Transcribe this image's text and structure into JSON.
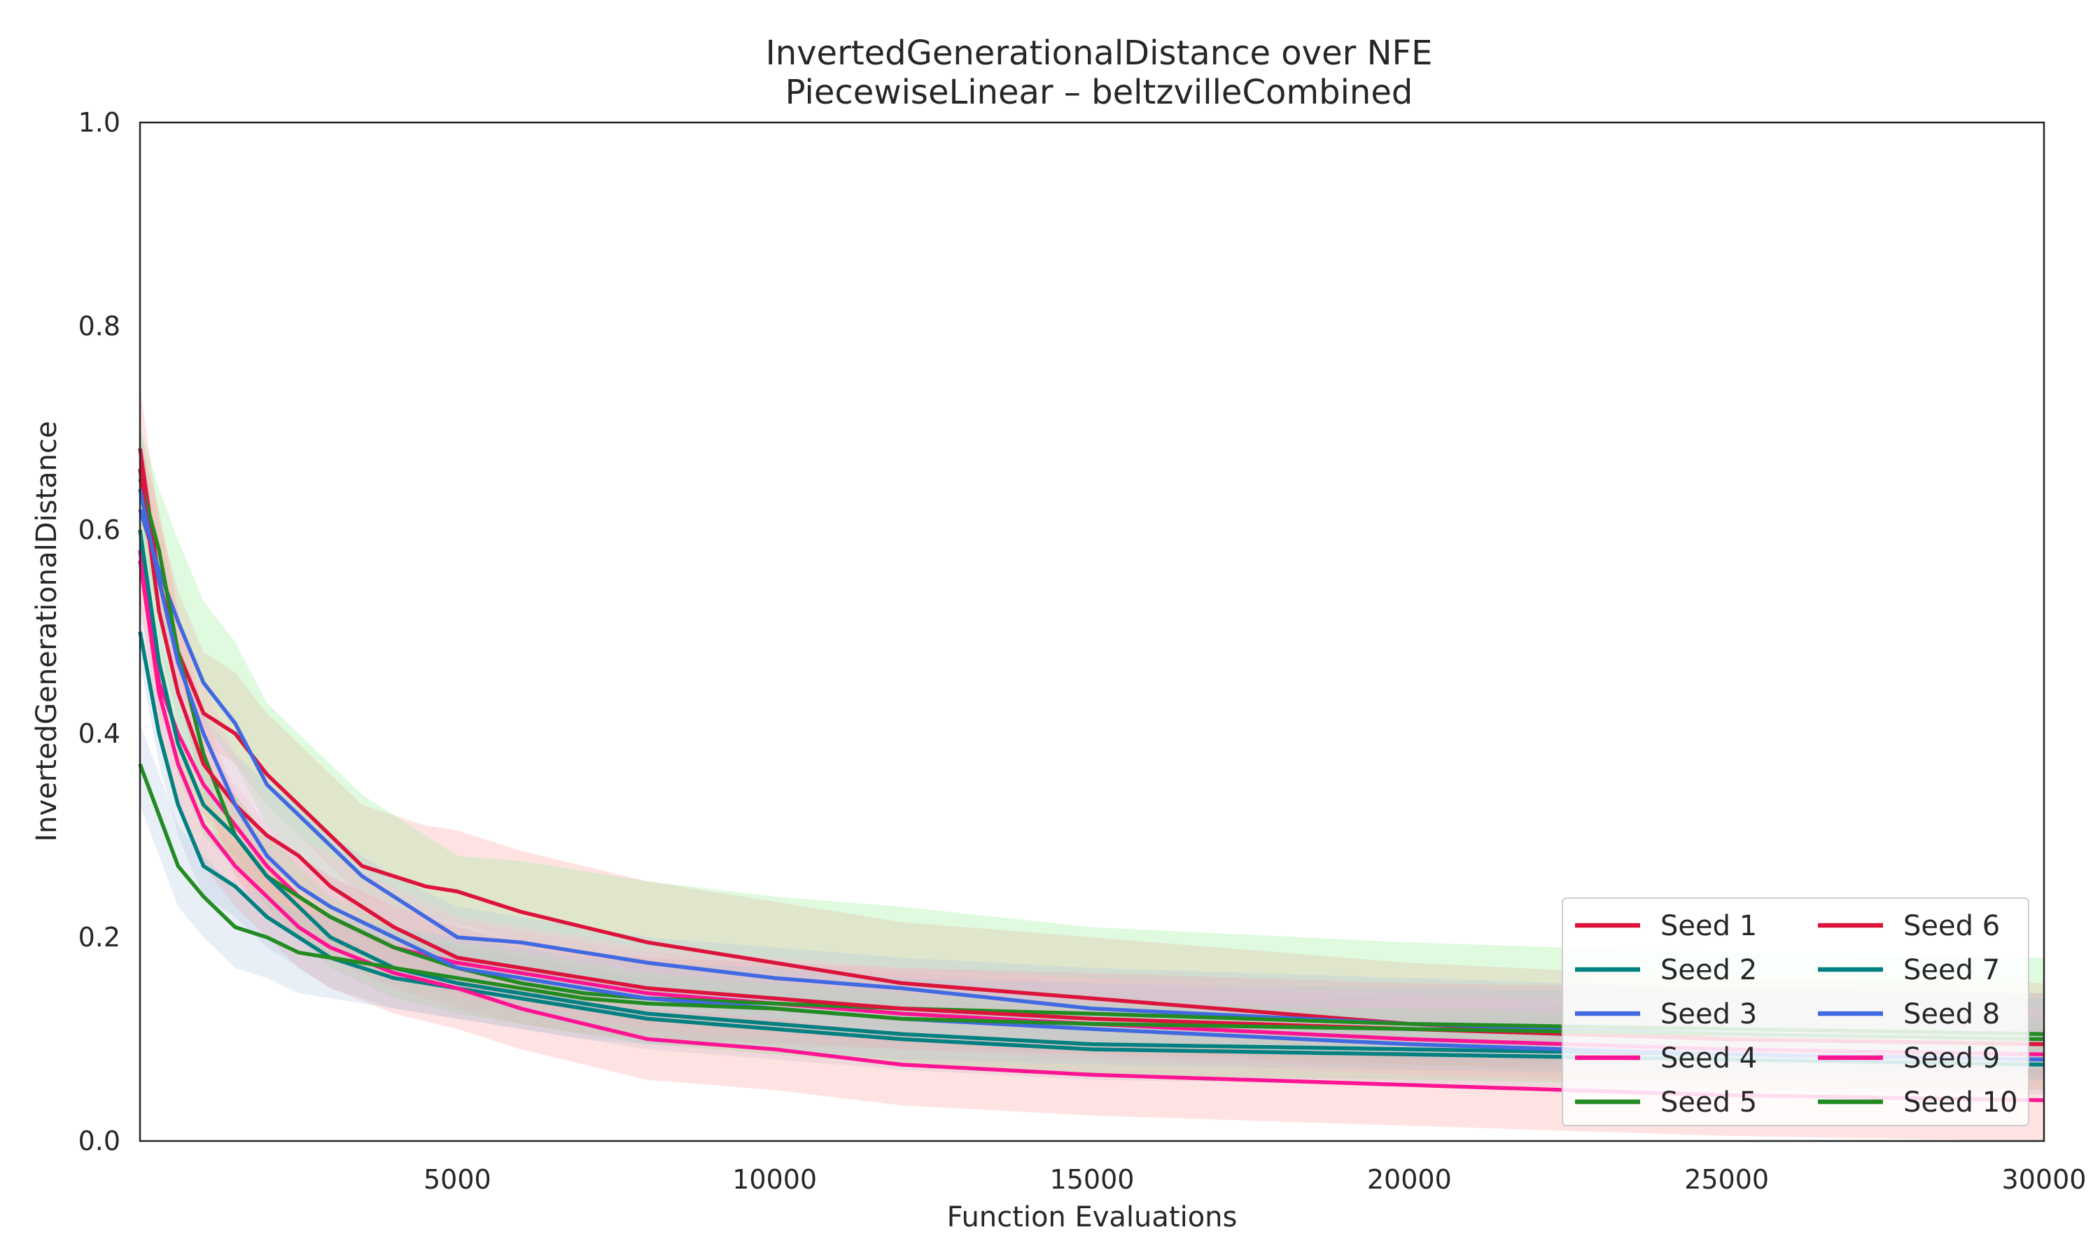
{
  "chart_data": {
    "type": "line",
    "title": "InvertedGenerationalDistance over NFE",
    "subtitle": "PiecewiseLinear – beltzvilleCombined",
    "xlabel": "Function Evaluations",
    "ylabel": "InvertedGenerationalDistance",
    "xlim": [
      0,
      30000
    ],
    "ylim": [
      0.0,
      1.0
    ],
    "xticks": [
      5000,
      10000,
      15000,
      20000,
      25000,
      30000
    ],
    "yticks": [
      0.0,
      0.2,
      0.4,
      0.6,
      0.8,
      1.0
    ],
    "xtick_labels": [
      "5000",
      "10000",
      "15000",
      "20000",
      "25000",
      "30000"
    ],
    "ytick_labels": [
      "0.0",
      "0.2",
      "0.4",
      "0.6",
      "0.8",
      "1.0"
    ],
    "grid": false,
    "legend_position": "bottom-right",
    "legend_columns": 2,
    "band_colors": [
      "#ff9999",
      "#b0c4de",
      "#90ee90",
      "#ffc0cb"
    ],
    "series": [
      {
        "name": "Seed 1",
        "color": "#dc143c",
        "x": [
          0,
          300,
          600,
          1000,
          1500,
          2000,
          2500,
          3000,
          3500,
          4000,
          4500,
          5000,
          6000,
          7000,
          8000,
          9000,
          10000,
          12000,
          15000,
          20000,
          25000,
          30000
        ],
        "y": [
          0.68,
          0.55,
          0.48,
          0.42,
          0.4,
          0.36,
          0.33,
          0.3,
          0.27,
          0.26,
          0.25,
          0.245,
          0.225,
          0.21,
          0.195,
          0.185,
          0.175,
          0.155,
          0.14,
          0.115,
          0.1,
          0.095
        ],
        "band": [
          0.03,
          0.06
        ]
      },
      {
        "name": "Seed 2",
        "color": "#008080",
        "x": [
          0,
          300,
          600,
          1000,
          1500,
          2000,
          2500,
          3000,
          4000,
          5000,
          6000,
          7000,
          8000,
          10000,
          12000,
          15000,
          20000,
          25000,
          30000
        ],
        "y": [
          0.5,
          0.4,
          0.33,
          0.27,
          0.25,
          0.22,
          0.2,
          0.18,
          0.16,
          0.15,
          0.14,
          0.13,
          0.12,
          0.11,
          0.1,
          0.09,
          0.085,
          0.08,
          0.075
        ],
        "band": [
          0.03,
          0.04
        ]
      },
      {
        "name": "Seed 3",
        "color": "#4169e1",
        "x": [
          0,
          300,
          600,
          1000,
          1500,
          2000,
          2500,
          3000,
          3500,
          4000,
          4500,
          5000,
          6000,
          7000,
          8000,
          10000,
          12000,
          15000,
          20000,
          25000,
          30000
        ],
        "y": [
          0.62,
          0.56,
          0.51,
          0.45,
          0.41,
          0.35,
          0.32,
          0.29,
          0.26,
          0.24,
          0.22,
          0.2,
          0.195,
          0.185,
          0.175,
          0.16,
          0.15,
          0.13,
          0.115,
          0.105,
          0.1
        ],
        "band": [
          0.04,
          0.08
        ]
      },
      {
        "name": "Seed 4",
        "color": "#ff1493",
        "x": [
          0,
          300,
          600,
          1000,
          1500,
          2000,
          2500,
          3000,
          4000,
          5000,
          6000,
          7000,
          8000,
          10000,
          12000,
          15000,
          20000,
          25000,
          30000
        ],
        "y": [
          0.58,
          0.45,
          0.4,
          0.35,
          0.31,
          0.27,
          0.24,
          0.22,
          0.19,
          0.175,
          0.165,
          0.155,
          0.145,
          0.135,
          0.125,
          0.115,
          0.1,
          0.09,
          0.085
        ],
        "band": [
          0.03,
          0.04
        ]
      },
      {
        "name": "Seed 5",
        "color": "#228b22",
        "x": [
          0,
          300,
          600,
          1000,
          1500,
          2000,
          2500,
          3000,
          4000,
          5000,
          6000,
          7000,
          8000,
          10000,
          12000,
          15000,
          20000,
          25000,
          30000
        ],
        "y": [
          0.65,
          0.58,
          0.48,
          0.38,
          0.3,
          0.26,
          0.24,
          0.22,
          0.19,
          0.17,
          0.155,
          0.145,
          0.14,
          0.135,
          0.13,
          0.125,
          0.115,
          0.11,
          0.105
        ],
        "band": [
          0.04,
          0.04
        ]
      },
      {
        "name": "Seed 6",
        "color": "#dc143c",
        "x": [
          0,
          300,
          600,
          1000,
          1500,
          2000,
          2500,
          3000,
          4000,
          5000,
          6000,
          7000,
          8000,
          10000,
          12000,
          15000,
          20000,
          25000,
          30000
        ],
        "y": [
          0.66,
          0.52,
          0.44,
          0.37,
          0.33,
          0.3,
          0.28,
          0.25,
          0.21,
          0.18,
          0.17,
          0.16,
          0.15,
          0.14,
          0.13,
          0.12,
          0.11,
          0.1,
          0.095
        ],
        "band": [
          0.03,
          0.05
        ]
      },
      {
        "name": "Seed 7",
        "color": "#008080",
        "x": [
          0,
          300,
          600,
          1000,
          1500,
          2000,
          2500,
          3000,
          4000,
          5000,
          6000,
          7000,
          8000,
          10000,
          12000,
          15000,
          20000,
          25000,
          30000
        ],
        "y": [
          0.6,
          0.47,
          0.39,
          0.33,
          0.3,
          0.26,
          0.23,
          0.2,
          0.17,
          0.155,
          0.145,
          0.135,
          0.125,
          0.115,
          0.105,
          0.095,
          0.09,
          0.085,
          0.08
        ],
        "band": [
          0.03,
          0.04
        ]
      },
      {
        "name": "Seed 8",
        "color": "#4169e1",
        "x": [
          0,
          300,
          600,
          1000,
          1500,
          2000,
          2500,
          3000,
          4000,
          5000,
          6000,
          7000,
          8000,
          10000,
          12000,
          15000,
          20000,
          25000,
          30000
        ],
        "y": [
          0.64,
          0.55,
          0.47,
          0.4,
          0.33,
          0.28,
          0.25,
          0.23,
          0.2,
          0.17,
          0.16,
          0.15,
          0.14,
          0.13,
          0.12,
          0.11,
          0.095,
          0.085,
          0.08
        ],
        "band": [
          0.03,
          0.05
        ]
      },
      {
        "name": "Seed 9",
        "color": "#ff1493",
        "x": [
          0,
          300,
          600,
          1000,
          1500,
          2000,
          2500,
          3000,
          4000,
          5000,
          6000,
          7000,
          8000,
          10000,
          12000,
          15000,
          20000,
          25000,
          30000
        ],
        "y": [
          0.57,
          0.44,
          0.37,
          0.31,
          0.27,
          0.24,
          0.21,
          0.19,
          0.165,
          0.15,
          0.13,
          0.115,
          0.1,
          0.09,
          0.075,
          0.065,
          0.055,
          0.045,
          0.04
        ],
        "band": [
          0.04,
          0.03
        ]
      },
      {
        "name": "Seed 10",
        "color": "#228b22",
        "x": [
          0,
          300,
          600,
          1000,
          1500,
          2000,
          2500,
          3000,
          4000,
          5000,
          6000,
          7000,
          8000,
          10000,
          12000,
          15000,
          20000,
          25000,
          30000
        ],
        "y": [
          0.37,
          0.32,
          0.27,
          0.24,
          0.21,
          0.2,
          0.185,
          0.18,
          0.17,
          0.16,
          0.15,
          0.14,
          0.135,
          0.13,
          0.12,
          0.115,
          0.11,
          0.105,
          0.1
        ],
        "band": [
          0.04,
          0.04
        ]
      }
    ]
  }
}
